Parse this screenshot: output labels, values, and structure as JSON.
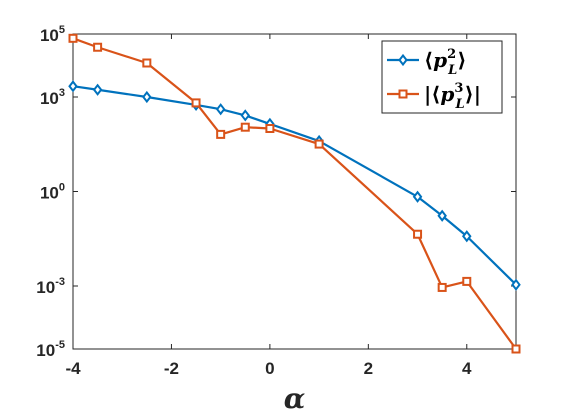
{
  "chart_data": {
    "type": "line",
    "title": "",
    "xlabel": "α",
    "ylabel": "",
    "yscale": "log",
    "xlim": [
      -4,
      5
    ],
    "ylim": [
      1e-05,
      100000
    ],
    "grid": false,
    "legend_position": "top-right",
    "xticks": [
      {
        "value": -4,
        "label": "-4"
      },
      {
        "value": -2,
        "label": "-2"
      },
      {
        "value": 0,
        "label": "0"
      },
      {
        "value": 2,
        "label": "2"
      },
      {
        "value": 4,
        "label": "4"
      }
    ],
    "yticks": [
      {
        "value": 100000,
        "base": "10",
        "exp": "5"
      },
      {
        "value": 1000,
        "base": "10",
        "exp": "3"
      },
      {
        "value": 1,
        "base": "10",
        "exp": "0"
      },
      {
        "value": 0.001,
        "base": "10",
        "exp": "-3"
      },
      {
        "value": 1e-05,
        "base": "10",
        "exp": "-5"
      }
    ],
    "series": [
      {
        "name": "⟨p_L^2⟩",
        "legend": {
          "open": "⟨",
          "var": "p",
          "sub": "L",
          "sup": "2",
          "close": "⟩"
        },
        "color": "#0072BD",
        "marker": "diamond",
        "points": [
          [
            -4,
            2200
          ],
          [
            -3.5,
            1700
          ],
          [
            -2.5,
            1000
          ],
          [
            -1.5,
            560
          ],
          [
            -1,
            410
          ],
          [
            -0.5,
            260
          ],
          [
            0,
            140
          ],
          [
            1,
            40
          ],
          [
            3,
            0.68
          ],
          [
            3.5,
            0.17
          ],
          [
            4,
            0.038
          ],
          [
            5,
            0.0011
          ]
        ]
      },
      {
        "name": "|⟨p_L^3⟩|",
        "legend": {
          "open": "|⟨",
          "var": "p",
          "sub": "L",
          "sup": "3",
          "close": "⟩|"
        },
        "color": "#D95319",
        "marker": "square",
        "points": [
          [
            -4,
            73000
          ],
          [
            -3.5,
            38000
          ],
          [
            -2.5,
            12000
          ],
          [
            -1.5,
            650
          ],
          [
            -1,
            65
          ],
          [
            -0.5,
            110
          ],
          [
            0,
            100
          ],
          [
            1,
            32
          ],
          [
            3,
            0.044
          ],
          [
            3.5,
            0.0009
          ],
          [
            4,
            0.0014
          ],
          [
            5,
            1e-05
          ]
        ]
      }
    ]
  }
}
